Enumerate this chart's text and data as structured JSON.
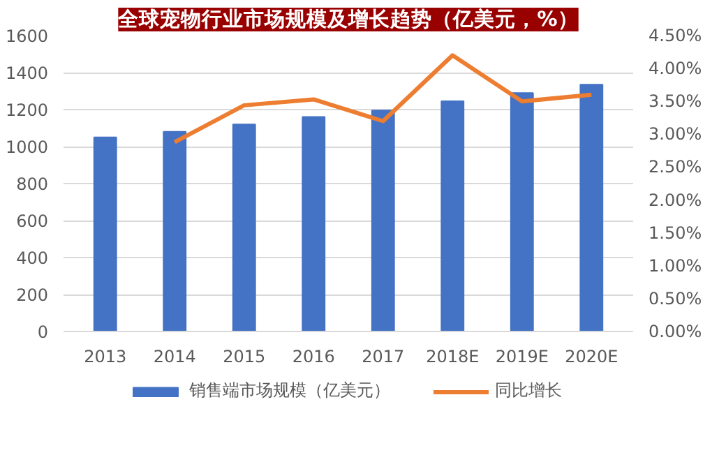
{
  "chart_data": {
    "type": "bar",
    "title": "全球宠物行业市场规模及增长趋势（亿美元，%）",
    "categories": [
      "2013",
      "2014",
      "2015",
      "2016",
      "2017",
      "2018E",
      "2019E",
      "2020E"
    ],
    "series": [
      {
        "name": "销售端市场规模（亿美元）",
        "color": "#4472c4",
        "values": [
          1050,
          1080,
          1120,
          1160,
          1195,
          1245,
          1290,
          1335
        ]
      },
      {
        "name": "同比增长",
        "type": "line",
        "axis": "y2",
        "color": "#ed7d31",
        "values": [
          null,
          2.88,
          3.44,
          3.53,
          3.2,
          4.2,
          3.5,
          3.6
        ]
      }
    ],
    "ylim": [
      0,
      1600
    ],
    "yticks": [
      0,
      200,
      400,
      600,
      800,
      1000,
      1200,
      1400,
      1600
    ],
    "y2lim": [
      0,
      4.5
    ],
    "y2ticks": [
      {
        "value": 0,
        "label": "0.00%"
      },
      {
        "value": 0.5,
        "label": "0.50%"
      },
      {
        "value": 1,
        "label": "1.00%"
      },
      {
        "value": 1.5,
        "label": "1.50%"
      },
      {
        "value": 2,
        "label": "2.00%"
      },
      {
        "value": 2.5,
        "label": "2.50%"
      },
      {
        "value": 3,
        "label": "3.00%"
      },
      {
        "value": 3.5,
        "label": "3.50%"
      },
      {
        "value": 4,
        "label": "4.00%"
      },
      {
        "value": 4.5,
        "label": "4.50%"
      }
    ],
    "grid": "y",
    "legend": "bottom",
    "marker": "none",
    "line_style": "solid"
  }
}
